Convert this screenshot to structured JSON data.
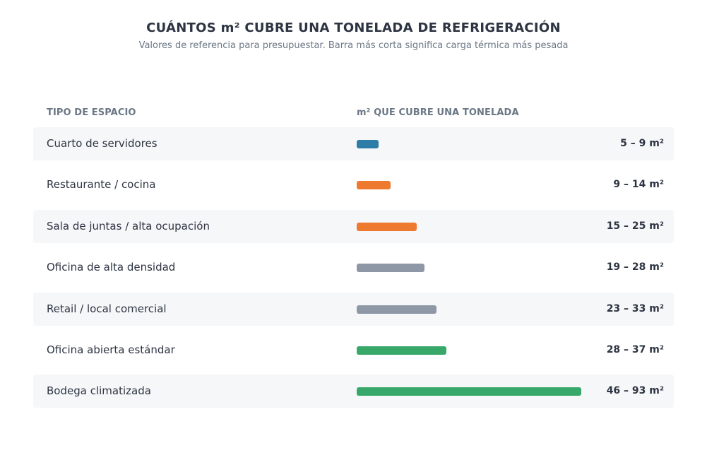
{
  "header": {
    "title": "CUÁNTOS m² CUBRE UNA TONELADA DE REFRIGERACIÓN",
    "subtitle": "Valores de referencia para presupuestar. Barra más corta significa carga térmica más pesada"
  },
  "columns": {
    "space_type": "TIPO DE ESPACIO",
    "coverage": "m² QUE CUBRE UNA TONELADA"
  },
  "chart_data": {
    "type": "bar",
    "orientation": "horizontal",
    "title": "CUÁNTOS m² CUBRE UNA TONELADA DE REFRIGERACIÓN",
    "subtitle": "Valores de referencia para presupuestar. Barra más corta significa carga térmica más pesada",
    "xlabel": "m² QUE CUBRE UNA TONELADA",
    "ylabel": "TIPO DE ESPACIO",
    "unit": "m²",
    "xlim": [
      0,
      93
    ],
    "categories": [
      "Cuarto de servidores",
      "Restaurante / cocina",
      "Sala de juntas / alta ocupación",
      "Oficina de alta densidad",
      "Retail / local comercial",
      "Oficina abierta estándar",
      "Bodega climatizada"
    ],
    "ranges": [
      {
        "min": 5,
        "max": 9,
        "label": "5 – 9 m²",
        "color": "#2e7ca8"
      },
      {
        "min": 9,
        "max": 14,
        "label": "9 – 14 m²",
        "color": "#ee7a30"
      },
      {
        "min": 15,
        "max": 25,
        "label": "15 – 25 m²",
        "color": "#ee7a30"
      },
      {
        "min": 19,
        "max": 28,
        "label": "19 – 28 m²",
        "color": "#8d97a5"
      },
      {
        "min": 23,
        "max": 33,
        "label": "23 – 33 m²",
        "color": "#8d97a5"
      },
      {
        "min": 28,
        "max": 37,
        "label": "28 – 37 m²",
        "color": "#38a86a"
      },
      {
        "min": 46,
        "max": 93,
        "label": "46 – 93 m²",
        "color": "#38a86a"
      }
    ]
  }
}
